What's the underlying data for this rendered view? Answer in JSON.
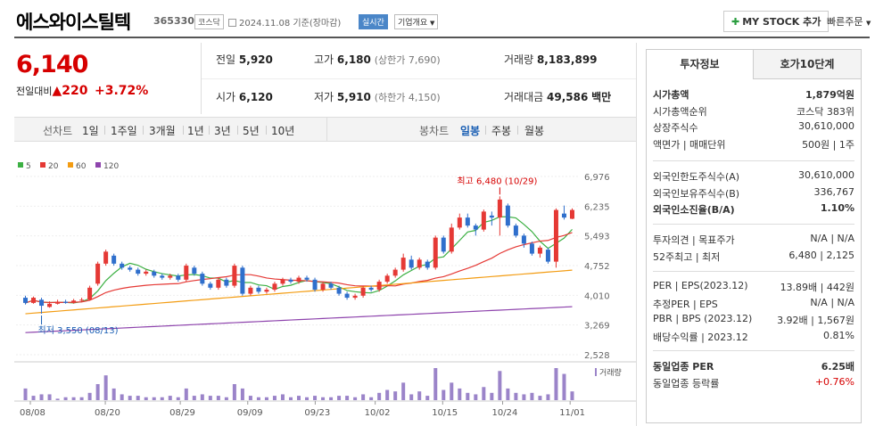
{
  "header": {
    "stock_name": "에스와이스틸텍",
    "stock_code": "365330",
    "market": "코스닥",
    "date_text": "2024.11.08 기준(장마감)",
    "realtime_label": "실시간",
    "company_label": "기업개요",
    "mystock_label": "MY STOCK 추가",
    "quick_order_label": "빠른주문"
  },
  "price": {
    "current": "6,140",
    "diff_label": "전일대비",
    "diff_value": "220",
    "diff_percent": "+3.72%"
  },
  "stats": {
    "prev_close_label": "전일",
    "prev_close": "5,920",
    "high_label": "고가",
    "high": "6,180",
    "upper_limit_text": "(상한가 7,690)",
    "volume_label": "거래량",
    "volume": "8,183,899",
    "open_label": "시가",
    "open": "6,120",
    "low_label": "저가",
    "low": "5,910",
    "lower_limit_text": "(하한가 4,150)",
    "amount_label": "거래대금",
    "amount": "49,586",
    "amount_unit": "백만"
  },
  "period_bar": {
    "line_chart_label": "선차트",
    "line_periods": [
      "1일",
      "1주일",
      "3개월",
      "1년",
      "3년",
      "5년",
      "10년"
    ],
    "candle_chart_label": "봉차트",
    "candle_periods": [
      "일봉",
      "주봉",
      "월봉"
    ],
    "selected_candle": "일봉"
  },
  "chart_data": {
    "type": "candlestick",
    "legend": [
      {
        "name": "5",
        "color": "#3cb043"
      },
      {
        "name": "20",
        "color": "#e53935"
      },
      {
        "name": "60",
        "color": "#f39c12"
      },
      {
        "name": "120",
        "color": "#8e44ad"
      }
    ],
    "y_ticks": [
      6976,
      6235,
      5493,
      4752,
      4010,
      3269,
      2528
    ],
    "ylim": [
      2528,
      6976
    ],
    "x_ticks": [
      "08/08",
      "08/20",
      "08/29",
      "09/09",
      "09/23",
      "10/02",
      "10/15",
      "10/24",
      "11/01"
    ],
    "annotations": {
      "high_label": "최고 6,480 (10/29)",
      "high_value": 6480,
      "low_label": "최저 3,550 (08/13)",
      "low_value": 3550
    },
    "volume_label": "거래량",
    "candles": [
      [
        3950,
        3820,
        4000,
        3780
      ],
      [
        3820,
        3950,
        3980,
        3800
      ],
      [
        3900,
        3750,
        3950,
        3550
      ],
      [
        3720,
        3800,
        3860,
        3700
      ],
      [
        3800,
        3850,
        3900,
        3780
      ],
      [
        3850,
        3820,
        3900,
        3800
      ],
      [
        3820,
        3880,
        3920,
        3800
      ],
      [
        3880,
        3900,
        3950,
        3850
      ],
      [
        3900,
        4200,
        4250,
        3880
      ],
      [
        4300,
        4800,
        4850,
        4250
      ],
      [
        4800,
        5100,
        5150,
        4750
      ],
      [
        5000,
        4800,
        5050,
        4750
      ],
      [
        4800,
        4700,
        4850,
        4650
      ],
      [
        4700,
        4650,
        4750,
        4600
      ],
      [
        4650,
        4550,
        4700,
        4500
      ],
      [
        4550,
        4600,
        4650,
        4500
      ],
      [
        4600,
        4500,
        4650,
        4450
      ],
      [
        4500,
        4450,
        4550,
        4400
      ],
      [
        4450,
        4500,
        4550,
        4400
      ],
      [
        4500,
        4400,
        4550,
        4350
      ],
      [
        4400,
        4750,
        4800,
        4350
      ],
      [
        4700,
        4550,
        4750,
        4500
      ],
      [
        4550,
        4300,
        4600,
        4250
      ],
      [
        4300,
        4200,
        4350,
        4150
      ],
      [
        4200,
        4400,
        4450,
        4150
      ],
      [
        4400,
        4250,
        4450,
        4200
      ],
      [
        4250,
        4750,
        4800,
        4200
      ],
      [
        4700,
        4050,
        4750,
        4000
      ],
      [
        4050,
        4200,
        4250,
        4000
      ],
      [
        4200,
        4100,
        4250,
        4050
      ],
      [
        4100,
        4150,
        4200,
        4050
      ],
      [
        4150,
        4300,
        4350,
        4100
      ],
      [
        4300,
        4400,
        4450,
        4250
      ],
      [
        4400,
        4350,
        4450,
        4300
      ],
      [
        4350,
        4450,
        4500,
        4300
      ],
      [
        4450,
        4400,
        4500,
        4350
      ],
      [
        4400,
        4150,
        4450,
        4100
      ],
      [
        4150,
        4300,
        4350,
        4100
      ],
      [
        4300,
        4200,
        4350,
        4150
      ],
      [
        4200,
        4050,
        4250,
        4000
      ],
      [
        4050,
        3950,
        4100,
        3900
      ],
      [
        3950,
        4000,
        4050,
        3900
      ],
      [
        4000,
        4200,
        4250,
        3950
      ],
      [
        4200,
        4150,
        4250,
        4100
      ],
      [
        4150,
        4350,
        4400,
        4100
      ],
      [
        4350,
        4500,
        4550,
        4300
      ],
      [
        4500,
        4650,
        4700,
        4450
      ],
      [
        4650,
        4950,
        5050,
        4600
      ],
      [
        4900,
        4700,
        5000,
        4650
      ],
      [
        4700,
        4900,
        4950,
        4650
      ],
      [
        4850,
        4700,
        4900,
        4650
      ],
      [
        4700,
        5450,
        5500,
        4650
      ],
      [
        5450,
        5100,
        5500,
        5050
      ],
      [
        5100,
        5700,
        5800,
        5050
      ],
      [
        5700,
        5950,
        6050,
        5650
      ],
      [
        5950,
        5750,
        6050,
        5700
      ],
      [
        5750,
        5650,
        5800,
        5500
      ],
      [
        5650,
        6100,
        6150,
        5600
      ],
      [
        6000,
        5950,
        6100,
        5750
      ],
      [
        5950,
        6400,
        6480,
        5500
      ],
      [
        6250,
        5750,
        6300,
        5700
      ],
      [
        5750,
        5500,
        5800,
        5450
      ],
      [
        5500,
        5300,
        5550,
        5200
      ],
      [
        5300,
        5050,
        5350,
        5000
      ],
      [
        5050,
        5200,
        5250,
        4950
      ],
      [
        5150,
        4850,
        5200,
        4800
      ],
      [
        4850,
        6140,
        6180,
        4700
      ],
      [
        6050,
        5950,
        6250,
        5900
      ],
      [
        5920,
        6140,
        6180,
        5910
      ]
    ],
    "volumes": [
      8,
      3,
      4,
      4,
      1,
      2,
      2,
      2,
      5,
      11,
      17,
      8,
      4,
      3,
      3,
      2,
      2,
      2,
      3,
      2,
      8,
      3,
      4,
      3,
      3,
      2,
      11,
      8,
      3,
      2,
      2,
      3,
      4,
      2,
      3,
      2,
      3,
      2,
      2,
      3,
      3,
      2,
      4,
      2,
      5,
      7,
      6,
      12,
      4,
      6,
      3,
      22,
      7,
      12,
      8,
      5,
      4,
      9,
      5,
      20,
      8,
      5,
      4,
      5,
      3,
      4,
      22,
      18,
      6
    ]
  },
  "right_panel": {
    "tabs": [
      "투자정보",
      "호가10단계"
    ],
    "rows1": [
      {
        "label": "시가총액",
        "value": "1,879억원"
      },
      {
        "label": "시가총액순위",
        "value": "코스닥 383위"
      },
      {
        "label": "상장주식수",
        "value": "30,610,000"
      },
      {
        "label": "액면가 | 매매단위",
        "value": "500원 | 1주"
      }
    ],
    "rows2": [
      {
        "label": "외국인한도주식수(A)",
        "value": "30,610,000"
      },
      {
        "label": "외국인보유주식수(B)",
        "value": "336,767"
      },
      {
        "label": "외국인소진율(B/A)",
        "value": "1.10%"
      }
    ],
    "rows3": [
      {
        "label": "투자의견 | 목표주가",
        "value": "N/A | N/A"
      },
      {
        "label": "52주최고 | 최저",
        "value": "6,480 | 2,125"
      }
    ],
    "rows4": [
      {
        "label": "PER | EPS(2023.12)",
        "value": "13.89배 | 442원"
      },
      {
        "label": "추정PER | EPS",
        "value": "N/A | N/A"
      },
      {
        "label": "PBR | BPS (2023.12)",
        "value": "3.92배 | 1,567원"
      },
      {
        "label": "배당수익률 | 2023.12",
        "value": "0.81%"
      }
    ],
    "rows5": [
      {
        "label": "동일업종 PER",
        "value": "6.25배"
      },
      {
        "label": "동일업종 등락률",
        "value": "+0.76%"
      }
    ]
  }
}
